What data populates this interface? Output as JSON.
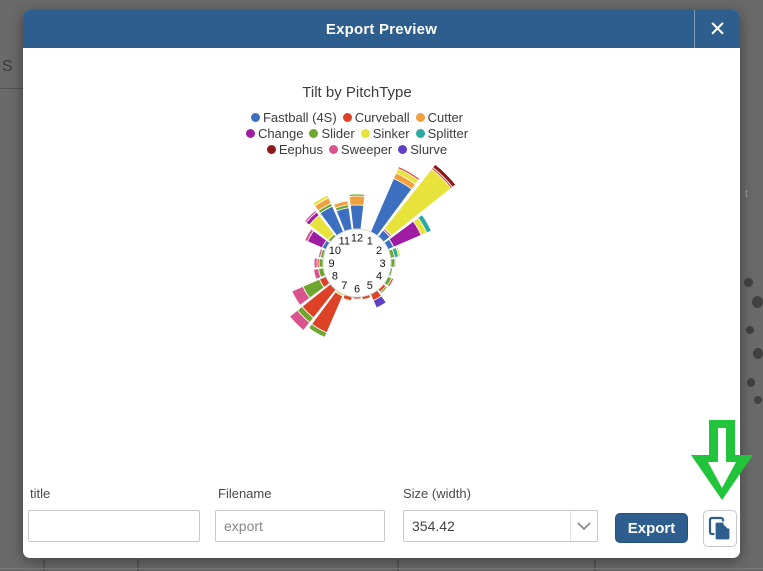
{
  "background": {
    "left_letter": "S",
    "right_letter": "t"
  },
  "modal": {
    "title": "Export Preview",
    "close_icon": "✕",
    "header_color": "#2d5e8d"
  },
  "chart_data": {
    "type": "polar_stacked_bar_rose",
    "title": "Tilt by PitchType",
    "clock_numbers": [
      1,
      2,
      3,
      4,
      5,
      6,
      7,
      8,
      9,
      10,
      11,
      12
    ],
    "legend_position": "top",
    "series_colors": {
      "Fastball (4S)": "#3d6fc0",
      "Curveball": "#de4226",
      "Cutter": "#f0a03c",
      "Change": "#9e1da2",
      "Slider": "#6fa630",
      "Sinker": "#e8e33b",
      "Splitter": "#2aa9a0",
      "Eephus": "#8c1a1d",
      "Sweeper": "#d9548f",
      "Slurve": "#5f3fc4"
    },
    "legend_rows": [
      [
        "Fastball (4S)",
        "Curveball",
        "Cutter"
      ],
      [
        "Change",
        "Slider",
        "Sinker",
        "Splitter"
      ],
      [
        "Eephus",
        "Sweeper",
        "Slurve"
      ]
    ],
    "sectors": [
      {
        "hour": 12,
        "stack": [
          [
            "Fastball (4S)",
            24
          ],
          [
            "Cutter",
            9
          ],
          [
            "Slider",
            2
          ]
        ]
      },
      {
        "hour": 1,
        "stack": [
          [
            "Fastball (4S)",
            58
          ],
          [
            "Cutter",
            6
          ],
          [
            "Sinker",
            5
          ],
          [
            "Curveball",
            2
          ]
        ]
      },
      {
        "hour": 1.5,
        "stack": [
          [
            "Fastball (4S)",
            8
          ],
          [
            "Sweeper",
            2
          ],
          [
            "Sinker",
            76
          ],
          [
            "Curveball",
            2
          ],
          [
            "Eephus",
            4
          ]
        ]
      },
      {
        "hour": 2,
        "stack": [
          [
            "Fastball (4S)",
            6
          ],
          [
            "Change",
            30
          ],
          [
            "Sinker",
            6
          ],
          [
            "Splitter",
            5
          ]
        ]
      },
      {
        "hour": 2.5,
        "stack": [
          [
            "Slider",
            4
          ],
          [
            "Splitter",
            4
          ],
          [
            "Sinker",
            2
          ]
        ]
      },
      {
        "hour": 3,
        "stack": [
          [
            "Slider",
            4
          ],
          [
            "Curveball",
            1
          ]
        ]
      },
      {
        "hour": 3.5,
        "stack": [
          [
            "Slider",
            2
          ]
        ]
      },
      {
        "hour": 4,
        "stack": [
          [
            "Slider",
            4
          ],
          [
            "Curveball",
            2
          ]
        ]
      },
      {
        "hour": 4.5,
        "stack": [
          [
            "Curveball",
            3
          ],
          [
            "Slider",
            2
          ]
        ]
      },
      {
        "hour": 5,
        "stack": [
          [
            "Curveball",
            7
          ],
          [
            "Slurve",
            8
          ]
        ]
      },
      {
        "hour": 5.5,
        "stack": [
          [
            "Curveball",
            3
          ]
        ]
      },
      {
        "hour": 6,
        "stack": [
          [
            "Curveball",
            2
          ]
        ]
      },
      {
        "hour": 6.5,
        "stack": [
          [
            "Curveball",
            4
          ],
          [
            "Slider",
            1
          ]
        ]
      },
      {
        "hour": 7,
        "stack": [
          [
            "Sinker",
            2
          ],
          [
            "Curveball",
            40
          ],
          [
            "Slider",
            5
          ]
        ]
      },
      {
        "hour": 7.5,
        "stack": [
          [
            "Curveball",
            36
          ],
          [
            "Slider",
            6
          ],
          [
            "Sweeper",
            10
          ]
        ]
      },
      {
        "hour": 8,
        "stack": [
          [
            "Curveball",
            7
          ],
          [
            "Slider",
            18
          ],
          [
            "Sweeper",
            12
          ]
        ]
      },
      {
        "hour": 8.5,
        "stack": [
          [
            "Slider",
            5
          ],
          [
            "Sweeper",
            5
          ]
        ]
      },
      {
        "hour": 9,
        "stack": [
          [
            "Slider",
            4
          ],
          [
            "Curveball",
            2
          ],
          [
            "Sweeper",
            3
          ]
        ]
      },
      {
        "hour": 9.5,
        "stack": [
          [
            "Slider",
            3
          ],
          [
            "Sweeper",
            2
          ]
        ]
      },
      {
        "hour": 10,
        "stack": [
          [
            "Fastball (4S)",
            4
          ],
          [
            "Change",
            16
          ],
          [
            "Sweeper",
            3
          ]
        ]
      },
      {
        "hour": 10.5,
        "stack": [
          [
            "Slider",
            3
          ],
          [
            "Sinker",
            24
          ],
          [
            "Change",
            4
          ],
          [
            "Sweeper",
            2
          ]
        ]
      },
      {
        "hour": 11,
        "stack": [
          [
            "Fastball (4S)",
            28
          ],
          [
            "Slider",
            3
          ],
          [
            "Cutter",
            6
          ],
          [
            "Sinker",
            3
          ]
        ]
      },
      {
        "hour": 11.5,
        "stack": [
          [
            "Fastball (4S)",
            22
          ],
          [
            "Slider",
            3
          ],
          [
            "Cutter",
            4
          ]
        ]
      }
    ]
  },
  "form": {
    "title_field": {
      "label": "title",
      "value": ""
    },
    "filename_field": {
      "label": "Filename",
      "value": "export"
    },
    "size_field": {
      "label": "Size (width)",
      "value": "354.42"
    },
    "export_button_label": "Export"
  },
  "annotation": {
    "arrow_color": "#22c43c"
  }
}
